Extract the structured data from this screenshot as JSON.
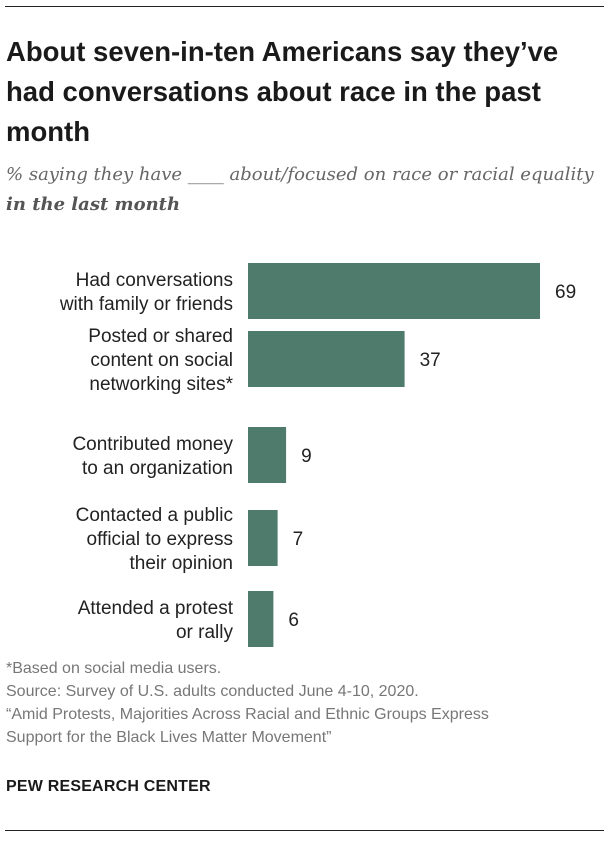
{
  "title": "About seven-in-ten Americans say they’ve had conversations about race in the past month",
  "subtitle_pre": "% saying they have ____ about/focused on race or racial equality ",
  "subtitle_bold": "in the last month",
  "colors": {
    "bar": "#4e7b6c"
  },
  "chart_data": {
    "type": "bar",
    "orientation": "horizontal",
    "categories": [
      [
        "Had conversations",
        "with family or friends"
      ],
      [
        "Posted or shared",
        "content on social",
        "networking sites*"
      ],
      [
        "Contributed money",
        "to an organization"
      ],
      [
        "Contacted a public",
        "official to express",
        "their opinion"
      ],
      [
        "Attended a protest",
        "or rally"
      ]
    ],
    "values": [
      69,
      37,
      9,
      7,
      6
    ],
    "value_labels": [
      "69",
      "37",
      "9",
      "7",
      "6"
    ],
    "xlim": [
      0,
      69
    ]
  },
  "notes": {
    "footnote": "*Based on social media users.",
    "source": "Source: Survey of U.S. adults conducted June 4-10, 2020.",
    "report_line1": "“Amid Protests, Majorities Across Racial and Ethnic Groups Express",
    "report_line2": "Support for the Black Lives Matter Movement”"
  },
  "brand": "PEW RESEARCH CENTER"
}
